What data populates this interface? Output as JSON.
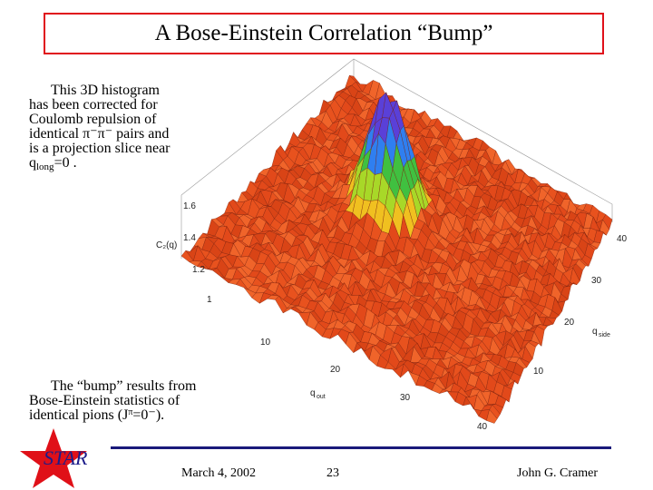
{
  "slide": {
    "title": "A Bose-Einstein Correlation “Bump”",
    "para1": {
      "line1": "This 3D histogram",
      "line2": "has been corrected for",
      "line3": "Coulomb repulsion of",
      "line4": "identical π⁻π⁻ pairs and",
      "line5": "is a projection slice near",
      "line6_a": "q",
      "line6_sub": "long",
      "line6_b": "=0 ."
    },
    "para2": {
      "line1": "The “bump” results from",
      "line2": "Bose-Einstein statistics of",
      "line3_a": "identical pions (J",
      "line3_sup": "π",
      "line3_b": "=0⁻)."
    }
  },
  "plot": {
    "z_axis_label": "C₂(q)",
    "z_ticks": [
      "1.6",
      "1.4",
      "1.2",
      "1"
    ],
    "x_axis_label": "q_out",
    "x_ticks": [
      "10",
      "20",
      "30",
      "40"
    ],
    "y_axis_label": "q_side",
    "y_ticks": [
      "10",
      "20",
      "30",
      "40"
    ],
    "colors": {
      "base": "#e8521e",
      "peak_low": "#f0c020",
      "peak_mid": "#40c040",
      "peak_high": "#5a40d8",
      "edge": "#7a1e0a"
    }
  },
  "footer": {
    "logo_text": "STAR",
    "date": "March 4, 2002",
    "page_number": "23",
    "author": "John G. Cramer",
    "colors": {
      "star": "#e01018",
      "line": "#1a1a7a",
      "logo_text": "#1c1c8a"
    }
  }
}
